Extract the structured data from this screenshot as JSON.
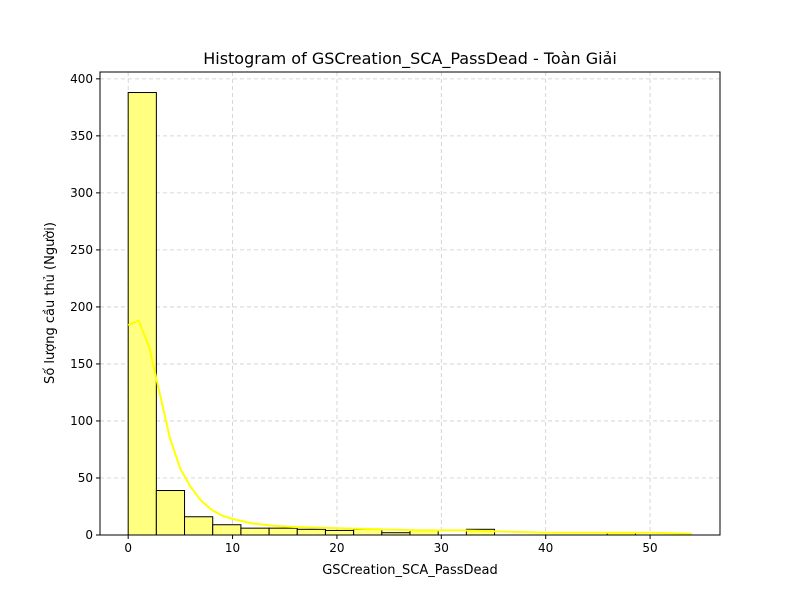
{
  "chart_data": {
    "type": "bar",
    "title": "Histogram of GSCreation_SCA_PassDead - Toàn Giải",
    "xlabel": "GSCreation_SCA_PassDead",
    "ylabel": "Số lượng cầu thủ (Người)",
    "xlim": [
      -2.7,
      56.7
    ],
    "ylim": [
      0,
      406
    ],
    "xticks": [
      0,
      10,
      20,
      30,
      40,
      50
    ],
    "yticks": [
      0,
      50,
      100,
      150,
      200,
      250,
      300,
      350,
      400
    ],
    "grid": true,
    "bin_edges": [
      0,
      2.7,
      5.4,
      8.1,
      10.8,
      13.5,
      16.2,
      18.9,
      21.6,
      24.3,
      27.0,
      29.7,
      32.4,
      35.1,
      37.8,
      40.5,
      43.2,
      45.9,
      48.6,
      51.3,
      54.0
    ],
    "counts": [
      388,
      39,
      16,
      9,
      6,
      6,
      5,
      4,
      5,
      2,
      4,
      0,
      5,
      0,
      0,
      0,
      0,
      2,
      0,
      0
    ],
    "bar_color": "#ffff80",
    "edge_color": "#000000",
    "kde": {
      "color": "#ffff00",
      "x": [
        0,
        1,
        2,
        3,
        4,
        5,
        6,
        7,
        8,
        9,
        10,
        12,
        14,
        16,
        18,
        20,
        22,
        24,
        26,
        28,
        30,
        32,
        34,
        36,
        38,
        40,
        42,
        44,
        46,
        48,
        50,
        52,
        54
      ],
      "y": [
        184,
        188,
        165,
        125,
        85,
        58,
        42,
        30,
        22,
        17,
        14,
        10,
        8,
        7,
        6.5,
        6,
        5.5,
        5,
        4.5,
        4,
        4,
        4,
        3.5,
        3,
        2.5,
        2,
        2,
        2,
        2,
        2,
        2,
        1.5,
        1
      ]
    }
  }
}
